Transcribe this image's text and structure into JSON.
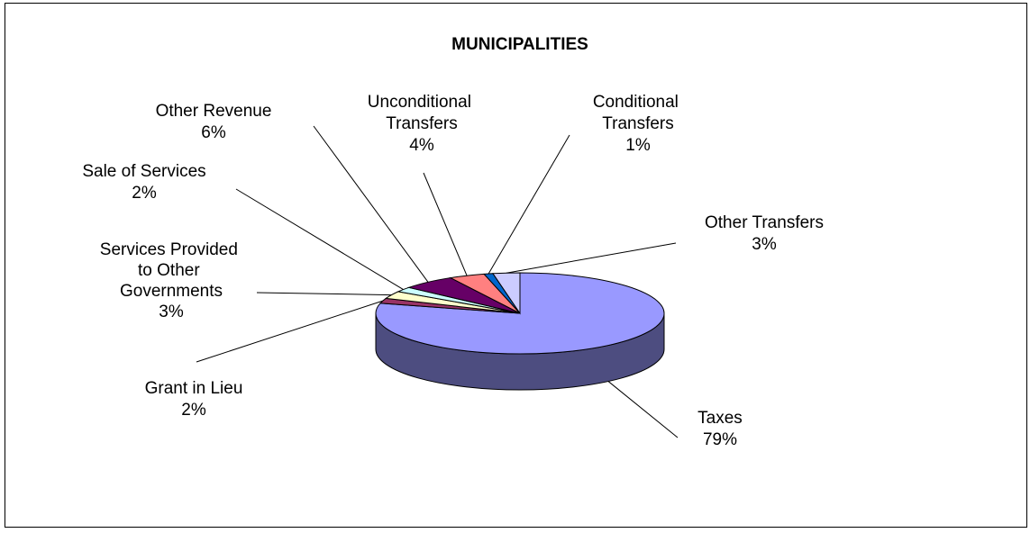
{
  "chart_data": {
    "type": "pie",
    "title": "MUNICIPALITIES",
    "categories": [
      "Taxes",
      "Grant in Lieu",
      "Services Provided to Other Governments",
      "Sale of Services",
      "Other Revenue",
      "Unconditional Transfers",
      "Conditional Transfers",
      "Other Transfers"
    ],
    "values": [
      79,
      2,
      3,
      2,
      6,
      4,
      1,
      3
    ],
    "value_labels": [
      "79%",
      "2%",
      "3%",
      "2%",
      "6%",
      "4%",
      "1%",
      "3%"
    ],
    "colors": [
      "#9999ff",
      "#993366",
      "#ffffcc",
      "#ccffff",
      "#660066",
      "#ff8080",
      "#0066cc",
      "#ccccff"
    ]
  }
}
